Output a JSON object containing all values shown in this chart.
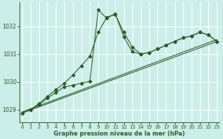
{
  "title": "Graphe pression niveau de la mer (hPa)",
  "bg_color": "#cceee8",
  "grid_color": "#ffffff",
  "line_color": "#2d5a2d",
  "x_ticks": [
    0,
    1,
    2,
    3,
    4,
    5,
    6,
    7,
    8,
    9,
    10,
    11,
    12,
    13,
    14,
    15,
    16,
    17,
    18,
    19,
    20,
    21,
    22,
    23
  ],
  "y_ticks": [
    1029,
    1030,
    1031,
    1032
  ],
  "ylim": [
    1028.55,
    1032.85
  ],
  "xlim": [
    -0.3,
    23.3
  ],
  "line1_x": [
    0,
    1,
    2,
    3,
    4,
    5,
    6,
    7,
    8,
    9,
    10,
    11,
    12,
    13,
    14,
    15,
    16,
    17,
    18,
    19,
    20,
    21,
    22,
    23
  ],
  "line1_y": [
    1028.88,
    1029.0,
    1029.22,
    1029.48,
    1029.72,
    1029.95,
    1030.25,
    1030.58,
    1030.92,
    1031.78,
    1032.32,
    1032.42,
    1031.78,
    1031.25,
    1031.0,
    1031.05,
    1031.18,
    1031.32,
    1031.45,
    1031.58,
    1031.65,
    1031.78,
    1031.68,
    1031.45
  ],
  "line2_x": [
    0,
    1,
    2,
    3,
    4,
    5,
    6,
    7,
    8,
    9,
    10,
    11,
    12,
    13,
    14,
    15,
    16,
    17,
    18,
    19,
    20,
    21,
    22,
    23
  ],
  "line2_y": [
    1028.88,
    1029.0,
    1029.18,
    1029.42,
    1029.62,
    1029.82,
    1029.88,
    1029.95,
    1030.02,
    1032.58,
    1032.28,
    1032.45,
    1031.62,
    1031.08,
    1031.0,
    1031.05,
    1031.18,
    1031.32,
    1031.45,
    1031.58,
    1031.65,
    1031.78,
    1031.68,
    1031.45
  ],
  "line3_x": [
    0,
    23
  ],
  "line3_y": [
    1028.88,
    1031.45
  ],
  "line4_x": [
    0,
    23
  ],
  "line4_y": [
    1028.92,
    1031.52
  ]
}
